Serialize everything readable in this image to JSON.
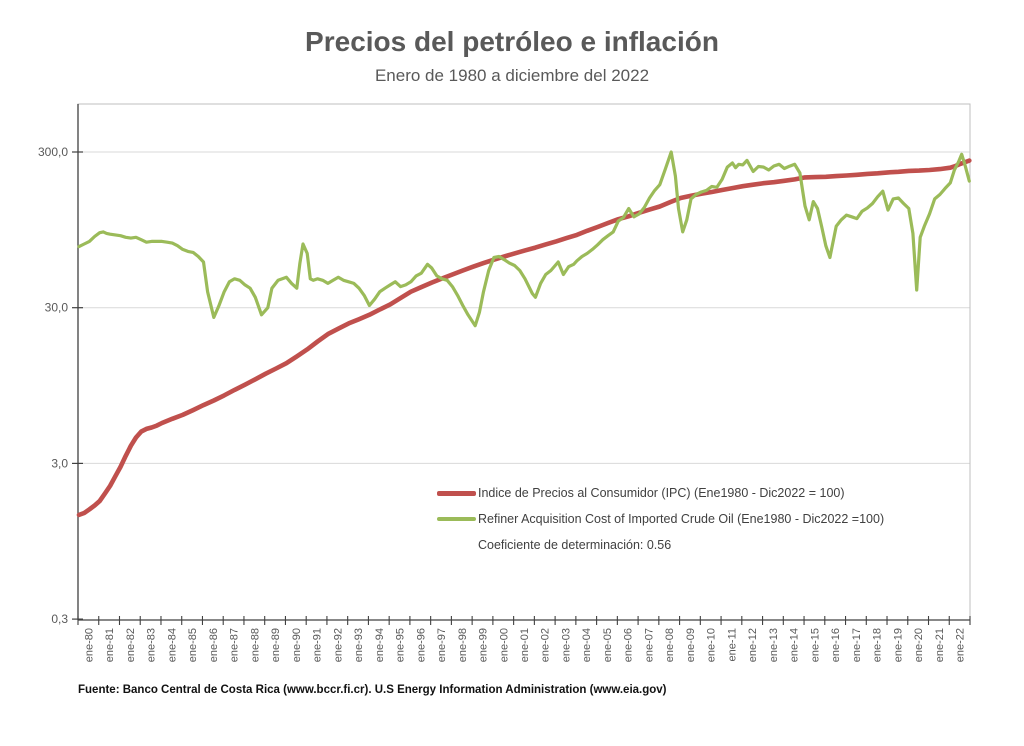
{
  "header": {
    "title": "Precios del petróleo e inflación",
    "subtitle": "Enero de 1980 a diciembre del 2022"
  },
  "footer": {
    "source": "Fuente: Banco Central de Costa Rica (www.bccr.fi.cr).  U.S Energy Information Administration (www.eia.gov)"
  },
  "colors": {
    "ipc_line": "#C0504D",
    "oil_line": "#9BBB59",
    "gridline": "#D9D9D9",
    "axis": "#404040",
    "plot_border": "#BFBFBF",
    "tick_text": "#595959",
    "title_text": "#595959"
  },
  "chart_data": {
    "type": "line",
    "title": "Precios del petróleo e inflación",
    "subtitle": "Enero de 1980 a diciembre del 2022",
    "annotation": "Coeficiente de determinación: 0.56",
    "legend_position": "inside-center-right",
    "grid": "horizontal-only",
    "y_axis": {
      "scale": "log",
      "min": 0.3,
      "max": 612,
      "tick_values": [
        300,
        30,
        3,
        0.3
      ],
      "tick_labels": [
        "300,0",
        "30,0",
        "3,0",
        "0,3"
      ]
    },
    "x_axis": {
      "start": 1980,
      "end": 2023,
      "tick_labels": [
        "ene-80",
        "ene-81",
        "ene-82",
        "ene-83",
        "ene-84",
        "ene-85",
        "ene-86",
        "ene-87",
        "ene-88",
        "ene-89",
        "ene-90",
        "ene-91",
        "ene-92",
        "ene-93",
        "ene-94",
        "ene-95",
        "ene-96",
        "ene-97",
        "ene-98",
        "ene-99",
        "ene-00",
        "ene-01",
        "ene-02",
        "ene-03",
        "ene-04",
        "ene-05",
        "ene-06",
        "ene-07",
        "ene-08",
        "ene-09",
        "ene-10",
        "ene-11",
        "ene-12",
        "ene-13",
        "ene-14",
        "ene-15",
        "ene-16",
        "ene-17",
        "ene-18",
        "ene-19",
        "ene-20",
        "ene-21",
        "ene-22"
      ]
    },
    "series": [
      {
        "name": "Indice de Precios al Consumidor (IPC) (Ene1980 - Dic2022 = 100)",
        "color": "#C0504D",
        "width": 4.6,
        "points": [
          [
            1980.0,
            1.4
          ],
          [
            1980.25,
            1.44
          ],
          [
            1980.5,
            1.52
          ],
          [
            1980.75,
            1.61
          ],
          [
            1981.0,
            1.72
          ],
          [
            1981.25,
            1.92
          ],
          [
            1981.5,
            2.15
          ],
          [
            1981.75,
            2.48
          ],
          [
            1982.0,
            2.85
          ],
          [
            1982.25,
            3.35
          ],
          [
            1982.5,
            3.9
          ],
          [
            1982.75,
            4.4
          ],
          [
            1983.0,
            4.8
          ],
          [
            1983.25,
            5.0
          ],
          [
            1983.5,
            5.1
          ],
          [
            1983.75,
            5.25
          ],
          [
            1984.0,
            5.45
          ],
          [
            1984.5,
            5.8
          ],
          [
            1985.0,
            6.15
          ],
          [
            1985.5,
            6.6
          ],
          [
            1986.0,
            7.1
          ],
          [
            1986.5,
            7.6
          ],
          [
            1987.0,
            8.2
          ],
          [
            1987.5,
            8.9
          ],
          [
            1988.0,
            9.6
          ],
          [
            1988.5,
            10.4
          ],
          [
            1989.0,
            11.3
          ],
          [
            1989.5,
            12.2
          ],
          [
            1990.0,
            13.2
          ],
          [
            1990.5,
            14.6
          ],
          [
            1991.0,
            16.2
          ],
          [
            1991.5,
            18.2
          ],
          [
            1992.0,
            20.3
          ],
          [
            1992.5,
            22.0
          ],
          [
            1993.0,
            23.8
          ],
          [
            1993.5,
            25.3
          ],
          [
            1994.0,
            27.0
          ],
          [
            1994.5,
            29.2
          ],
          [
            1995.0,
            31.5
          ],
          [
            1995.5,
            34.6
          ],
          [
            1996.0,
            38.0
          ],
          [
            1996.5,
            40.7
          ],
          [
            1997.0,
            43.5
          ],
          [
            1997.5,
            46.2
          ],
          [
            1998.0,
            49.0
          ],
          [
            1998.5,
            52.0
          ],
          [
            1999.0,
            55.0
          ],
          [
            1999.5,
            58.0
          ],
          [
            2000.0,
            61.0
          ],
          [
            2000.5,
            64.0
          ],
          [
            2001.0,
            67.0
          ],
          [
            2001.5,
            70.0
          ],
          [
            2002.0,
            73.0
          ],
          [
            2002.5,
            76.5
          ],
          [
            2003.0,
            80.0
          ],
          [
            2003.5,
            84.0
          ],
          [
            2004.0,
            88.0
          ],
          [
            2004.5,
            93.5
          ],
          [
            2005.0,
            99.0
          ],
          [
            2005.5,
            105
          ],
          [
            2006.0,
            111
          ],
          [
            2006.5,
            116
          ],
          [
            2007.0,
            122
          ],
          [
            2007.5,
            128
          ],
          [
            2008.0,
            134
          ],
          [
            2008.5,
            143
          ],
          [
            2009.0,
            152
          ],
          [
            2009.5,
            157
          ],
          [
            2010.0,
            162
          ],
          [
            2010.5,
            166
          ],
          [
            2011.0,
            171
          ],
          [
            2011.5,
            176
          ],
          [
            2012.0,
            181
          ],
          [
            2012.5,
            185
          ],
          [
            2013.0,
            189
          ],
          [
            2013.5,
            192
          ],
          [
            2014.0,
            196
          ],
          [
            2014.5,
            200
          ],
          [
            2015.0,
            206
          ],
          [
            2015.5,
            207
          ],
          [
            2016.0,
            208
          ],
          [
            2016.5,
            210
          ],
          [
            2017.0,
            212
          ],
          [
            2017.5,
            214
          ],
          [
            2018.0,
            217
          ],
          [
            2018.5,
            219
          ],
          [
            2019.0,
            222
          ],
          [
            2019.5,
            224
          ],
          [
            2020.0,
            227
          ],
          [
            2020.5,
            228
          ],
          [
            2021.0,
            230
          ],
          [
            2021.5,
            233
          ],
          [
            2022.0,
            238
          ],
          [
            2022.25,
            244
          ],
          [
            2022.5,
            252
          ],
          [
            2022.75,
            259
          ],
          [
            2022.92,
            264
          ]
        ]
      },
      {
        "name": "Refiner Acquisition Cost of Imported Crude Oil (Ene1980 - Dic2022 =100)",
        "color": "#9BBB59",
        "width": 3.2,
        "points": [
          [
            1980.0,
            74
          ],
          [
            1980.25,
            77
          ],
          [
            1980.5,
            80
          ],
          [
            1980.75,
            86
          ],
          [
            1981.0,
            91
          ],
          [
            1981.17,
            92
          ],
          [
            1981.33,
            90
          ],
          [
            1981.5,
            89
          ],
          [
            1981.75,
            88
          ],
          [
            1982.0,
            87
          ],
          [
            1982.25,
            85
          ],
          [
            1982.5,
            84
          ],
          [
            1982.75,
            85
          ],
          [
            1983.0,
            82
          ],
          [
            1983.25,
            79
          ],
          [
            1983.5,
            80
          ],
          [
            1983.75,
            80
          ],
          [
            1984.0,
            80
          ],
          [
            1984.25,
            79
          ],
          [
            1984.5,
            78
          ],
          [
            1984.75,
            75
          ],
          [
            1985.0,
            71
          ],
          [
            1985.25,
            69
          ],
          [
            1985.5,
            68
          ],
          [
            1985.75,
            64
          ],
          [
            1986.0,
            59
          ],
          [
            1986.2,
            38
          ],
          [
            1986.5,
            26
          ],
          [
            1986.75,
            31
          ],
          [
            1987.0,
            38
          ],
          [
            1987.25,
            44
          ],
          [
            1987.5,
            46
          ],
          [
            1987.75,
            45
          ],
          [
            1988.0,
            42
          ],
          [
            1988.25,
            40
          ],
          [
            1988.5,
            35
          ],
          [
            1988.8,
            27
          ],
          [
            1989.1,
            30
          ],
          [
            1989.3,
            40
          ],
          [
            1989.6,
            45
          ],
          [
            1989.8,
            46
          ],
          [
            1990.0,
            47
          ],
          [
            1990.25,
            43
          ],
          [
            1990.5,
            40
          ],
          [
            1990.65,
            58
          ],
          [
            1990.8,
            77
          ],
          [
            1991.0,
            67
          ],
          [
            1991.15,
            46
          ],
          [
            1991.3,
            45
          ],
          [
            1991.5,
            46
          ],
          [
            1991.75,
            45
          ],
          [
            1992.0,
            43
          ],
          [
            1992.25,
            45
          ],
          [
            1992.5,
            47
          ],
          [
            1992.75,
            45
          ],
          [
            1993.0,
            44
          ],
          [
            1993.25,
            43
          ],
          [
            1993.5,
            40
          ],
          [
            1993.75,
            36
          ],
          [
            1994.0,
            31
          ],
          [
            1994.25,
            34
          ],
          [
            1994.5,
            38
          ],
          [
            1994.75,
            40
          ],
          [
            1995.0,
            42
          ],
          [
            1995.25,
            44
          ],
          [
            1995.5,
            41
          ],
          [
            1995.75,
            42
          ],
          [
            1996.0,
            44
          ],
          [
            1996.25,
            48
          ],
          [
            1996.5,
            50
          ],
          [
            1996.8,
            57
          ],
          [
            1997.0,
            54
          ],
          [
            1997.25,
            48
          ],
          [
            1997.5,
            46
          ],
          [
            1997.75,
            45
          ],
          [
            1998.0,
            41
          ],
          [
            1998.25,
            36
          ],
          [
            1998.5,
            31
          ],
          [
            1998.75,
            27
          ],
          [
            1999.1,
            23
          ],
          [
            1999.3,
            28
          ],
          [
            1999.5,
            38
          ],
          [
            1999.75,
            52
          ],
          [
            2000.0,
            63
          ],
          [
            2000.25,
            64
          ],
          [
            2000.5,
            61
          ],
          [
            2000.75,
            58
          ],
          [
            2001.0,
            56
          ],
          [
            2001.25,
            52
          ],
          [
            2001.5,
            46
          ],
          [
            2001.85,
            37
          ],
          [
            2002.0,
            35
          ],
          [
            2002.25,
            43
          ],
          [
            2002.5,
            49
          ],
          [
            2002.75,
            52
          ],
          [
            2003.1,
            59
          ],
          [
            2003.35,
            49
          ],
          [
            2003.6,
            55
          ],
          [
            2003.85,
            57
          ],
          [
            2004.0,
            60
          ],
          [
            2004.25,
            64
          ],
          [
            2004.5,
            67
          ],
          [
            2004.75,
            71
          ],
          [
            2005.0,
            76
          ],
          [
            2005.25,
            82
          ],
          [
            2005.5,
            87
          ],
          [
            2005.75,
            92
          ],
          [
            2006.0,
            108
          ],
          [
            2006.25,
            114
          ],
          [
            2006.5,
            130
          ],
          [
            2006.75,
            115
          ],
          [
            2007.0,
            120
          ],
          [
            2007.25,
            132
          ],
          [
            2007.5,
            152
          ],
          [
            2007.75,
            170
          ],
          [
            2008.0,
            185
          ],
          [
            2008.25,
            230
          ],
          [
            2008.55,
            300
          ],
          [
            2008.75,
            210
          ],
          [
            2008.9,
            130
          ],
          [
            2009.1,
            92
          ],
          [
            2009.3,
            110
          ],
          [
            2009.5,
            150
          ],
          [
            2009.75,
            160
          ],
          [
            2010.0,
            166
          ],
          [
            2010.25,
            170
          ],
          [
            2010.5,
            180
          ],
          [
            2010.75,
            178
          ],
          [
            2011.0,
            200
          ],
          [
            2011.25,
            240
          ],
          [
            2011.5,
            255
          ],
          [
            2011.65,
            238
          ],
          [
            2011.8,
            250
          ],
          [
            2012.0,
            248
          ],
          [
            2012.2,
            265
          ],
          [
            2012.5,
            225
          ],
          [
            2012.75,
            242
          ],
          [
            2013.0,
            240
          ],
          [
            2013.25,
            230
          ],
          [
            2013.5,
            244
          ],
          [
            2013.75,
            250
          ],
          [
            2014.0,
            235
          ],
          [
            2014.25,
            243
          ],
          [
            2014.5,
            250
          ],
          [
            2014.75,
            220
          ],
          [
            2015.0,
            135
          ],
          [
            2015.2,
            110
          ],
          [
            2015.4,
            144
          ],
          [
            2015.6,
            130
          ],
          [
            2015.8,
            100
          ],
          [
            2016.0,
            75
          ],
          [
            2016.2,
            63
          ],
          [
            2016.5,
            100
          ],
          [
            2016.75,
            110
          ],
          [
            2017.0,
            118
          ],
          [
            2017.25,
            115
          ],
          [
            2017.5,
            112
          ],
          [
            2017.75,
            125
          ],
          [
            2018.0,
            131
          ],
          [
            2018.25,
            140
          ],
          [
            2018.5,
            155
          ],
          [
            2018.75,
            168
          ],
          [
            2019.0,
            127
          ],
          [
            2019.25,
            150
          ],
          [
            2019.5,
            152
          ],
          [
            2019.75,
            140
          ],
          [
            2020.0,
            130
          ],
          [
            2020.2,
            90
          ],
          [
            2020.38,
            39
          ],
          [
            2020.55,
            85
          ],
          [
            2020.75,
            100
          ],
          [
            2021.0,
            120
          ],
          [
            2021.25,
            150
          ],
          [
            2021.5,
            160
          ],
          [
            2021.75,
            175
          ],
          [
            2022.0,
            190
          ],
          [
            2022.2,
            230
          ],
          [
            2022.4,
            260
          ],
          [
            2022.55,
            290
          ],
          [
            2022.7,
            250
          ],
          [
            2022.92,
            195
          ]
        ]
      }
    ]
  }
}
